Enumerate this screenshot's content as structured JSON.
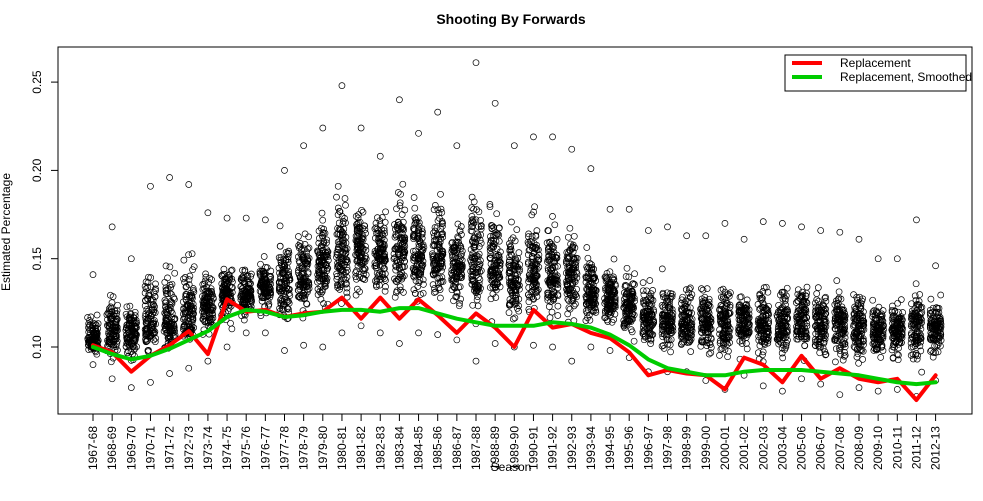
{
  "chart_data": {
    "type": "scatter",
    "title": "Shooting By Forwards",
    "xlabel": "Season",
    "ylabel": "Estimated Percentage",
    "categories": [
      "1967-68",
      "1968-69",
      "1969-70",
      "1970-71",
      "1971-72",
      "1972-73",
      "1973-74",
      "1974-75",
      "1975-76",
      "1976-77",
      "1977-78",
      "1978-79",
      "1979-80",
      "1980-81",
      "1981-82",
      "1982-83",
      "1983-84",
      "1984-85",
      "1985-86",
      "1986-87",
      "1987-88",
      "1988-89",
      "1989-90",
      "1990-91",
      "1991-92",
      "1992-93",
      "1993-94",
      "1994-95",
      "1995-96",
      "1996-97",
      "1997-98",
      "1998-99",
      "1999-00",
      "2000-01",
      "2001-02",
      "2002-03",
      "2003-04",
      "2005-06",
      "2006-07",
      "2007-08",
      "2008-09",
      "2009-10",
      "2010-11",
      "2011-12",
      "2012-13"
    ],
    "yticks": [
      0.1,
      0.15,
      0.2,
      0.25
    ],
    "ytick_labels": [
      "0.10",
      "0.15",
      "0.20",
      "0.25"
    ],
    "ylim": [
      0.072,
      0.265
    ],
    "grid": false,
    "legend_position": "top-right",
    "series": [
      {
        "name": "Replacement",
        "type": "line",
        "color": "#ff0000",
        "values": [
          0.101,
          0.097,
          0.086,
          0.095,
          0.101,
          0.109,
          0.096,
          0.127,
          0.12,
          0.121,
          0.117,
          0.119,
          0.12,
          0.128,
          0.116,
          0.128,
          0.116,
          0.127,
          0.118,
          0.108,
          0.119,
          0.111,
          0.1,
          0.121,
          0.111,
          0.113,
          0.108,
          0.105,
          0.097,
          0.084,
          0.087,
          0.085,
          0.084,
          0.076,
          0.094,
          0.09,
          0.08,
          0.095,
          0.082,
          0.088,
          0.082,
          0.08,
          0.082,
          0.07,
          0.084
        ]
      },
      {
        "name": "Replacement, Smoothed",
        "type": "line",
        "color": "#00cc00",
        "values": [
          0.1,
          0.096,
          0.093,
          0.095,
          0.099,
          0.104,
          0.109,
          0.117,
          0.121,
          0.12,
          0.117,
          0.118,
          0.12,
          0.121,
          0.121,
          0.12,
          0.122,
          0.122,
          0.119,
          0.116,
          0.114,
          0.112,
          0.112,
          0.112,
          0.114,
          0.113,
          0.111,
          0.107,
          0.101,
          0.093,
          0.088,
          0.086,
          0.084,
          0.084,
          0.086,
          0.087,
          0.087,
          0.087,
          0.086,
          0.085,
          0.084,
          0.082,
          0.08,
          0.079,
          0.08
        ]
      },
      {
        "name": "Players",
        "type": "scatter",
        "marker": "open-circle",
        "color": "#000000",
        "center": [
          0.104,
          0.11,
          0.108,
          0.111,
          0.113,
          0.12,
          0.123,
          0.13,
          0.13,
          0.133,
          0.135,
          0.14,
          0.146,
          0.151,
          0.155,
          0.154,
          0.155,
          0.152,
          0.153,
          0.147,
          0.148,
          0.146,
          0.14,
          0.141,
          0.14,
          0.139,
          0.131,
          0.128,
          0.123,
          0.116,
          0.114,
          0.113,
          0.115,
          0.114,
          0.115,
          0.114,
          0.113,
          0.115,
          0.113,
          0.113,
          0.112,
          0.11,
          0.11,
          0.11,
          0.111
        ],
        "min": [
          0.09,
          0.082,
          0.077,
          0.08,
          0.085,
          0.088,
          0.092,
          0.1,
          0.108,
          0.108,
          0.098,
          0.101,
          0.1,
          0.108,
          0.112,
          0.108,
          0.102,
          0.108,
          0.107,
          0.104,
          0.092,
          0.102,
          0.1,
          0.101,
          0.1,
          0.092,
          0.1,
          0.098,
          0.094,
          0.086,
          0.086,
          0.086,
          0.081,
          0.076,
          0.084,
          0.078,
          0.075,
          0.082,
          0.079,
          0.073,
          0.077,
          0.075,
          0.076,
          0.072,
          0.081
        ],
        "max": [
          0.141,
          0.168,
          0.15,
          0.191,
          0.196,
          0.192,
          0.176,
          0.173,
          0.173,
          0.172,
          0.2,
          0.214,
          0.224,
          0.248,
          0.224,
          0.208,
          0.24,
          0.221,
          0.233,
          0.214,
          0.261,
          0.238,
          0.214,
          0.219,
          0.219,
          0.212,
          0.201,
          0.178,
          0.178,
          0.166,
          0.168,
          0.163,
          0.163,
          0.17,
          0.161,
          0.171,
          0.17,
          0.168,
          0.166,
          0.165,
          0.161,
          0.15,
          0.15,
          0.172,
          0.146
        ]
      }
    ]
  }
}
